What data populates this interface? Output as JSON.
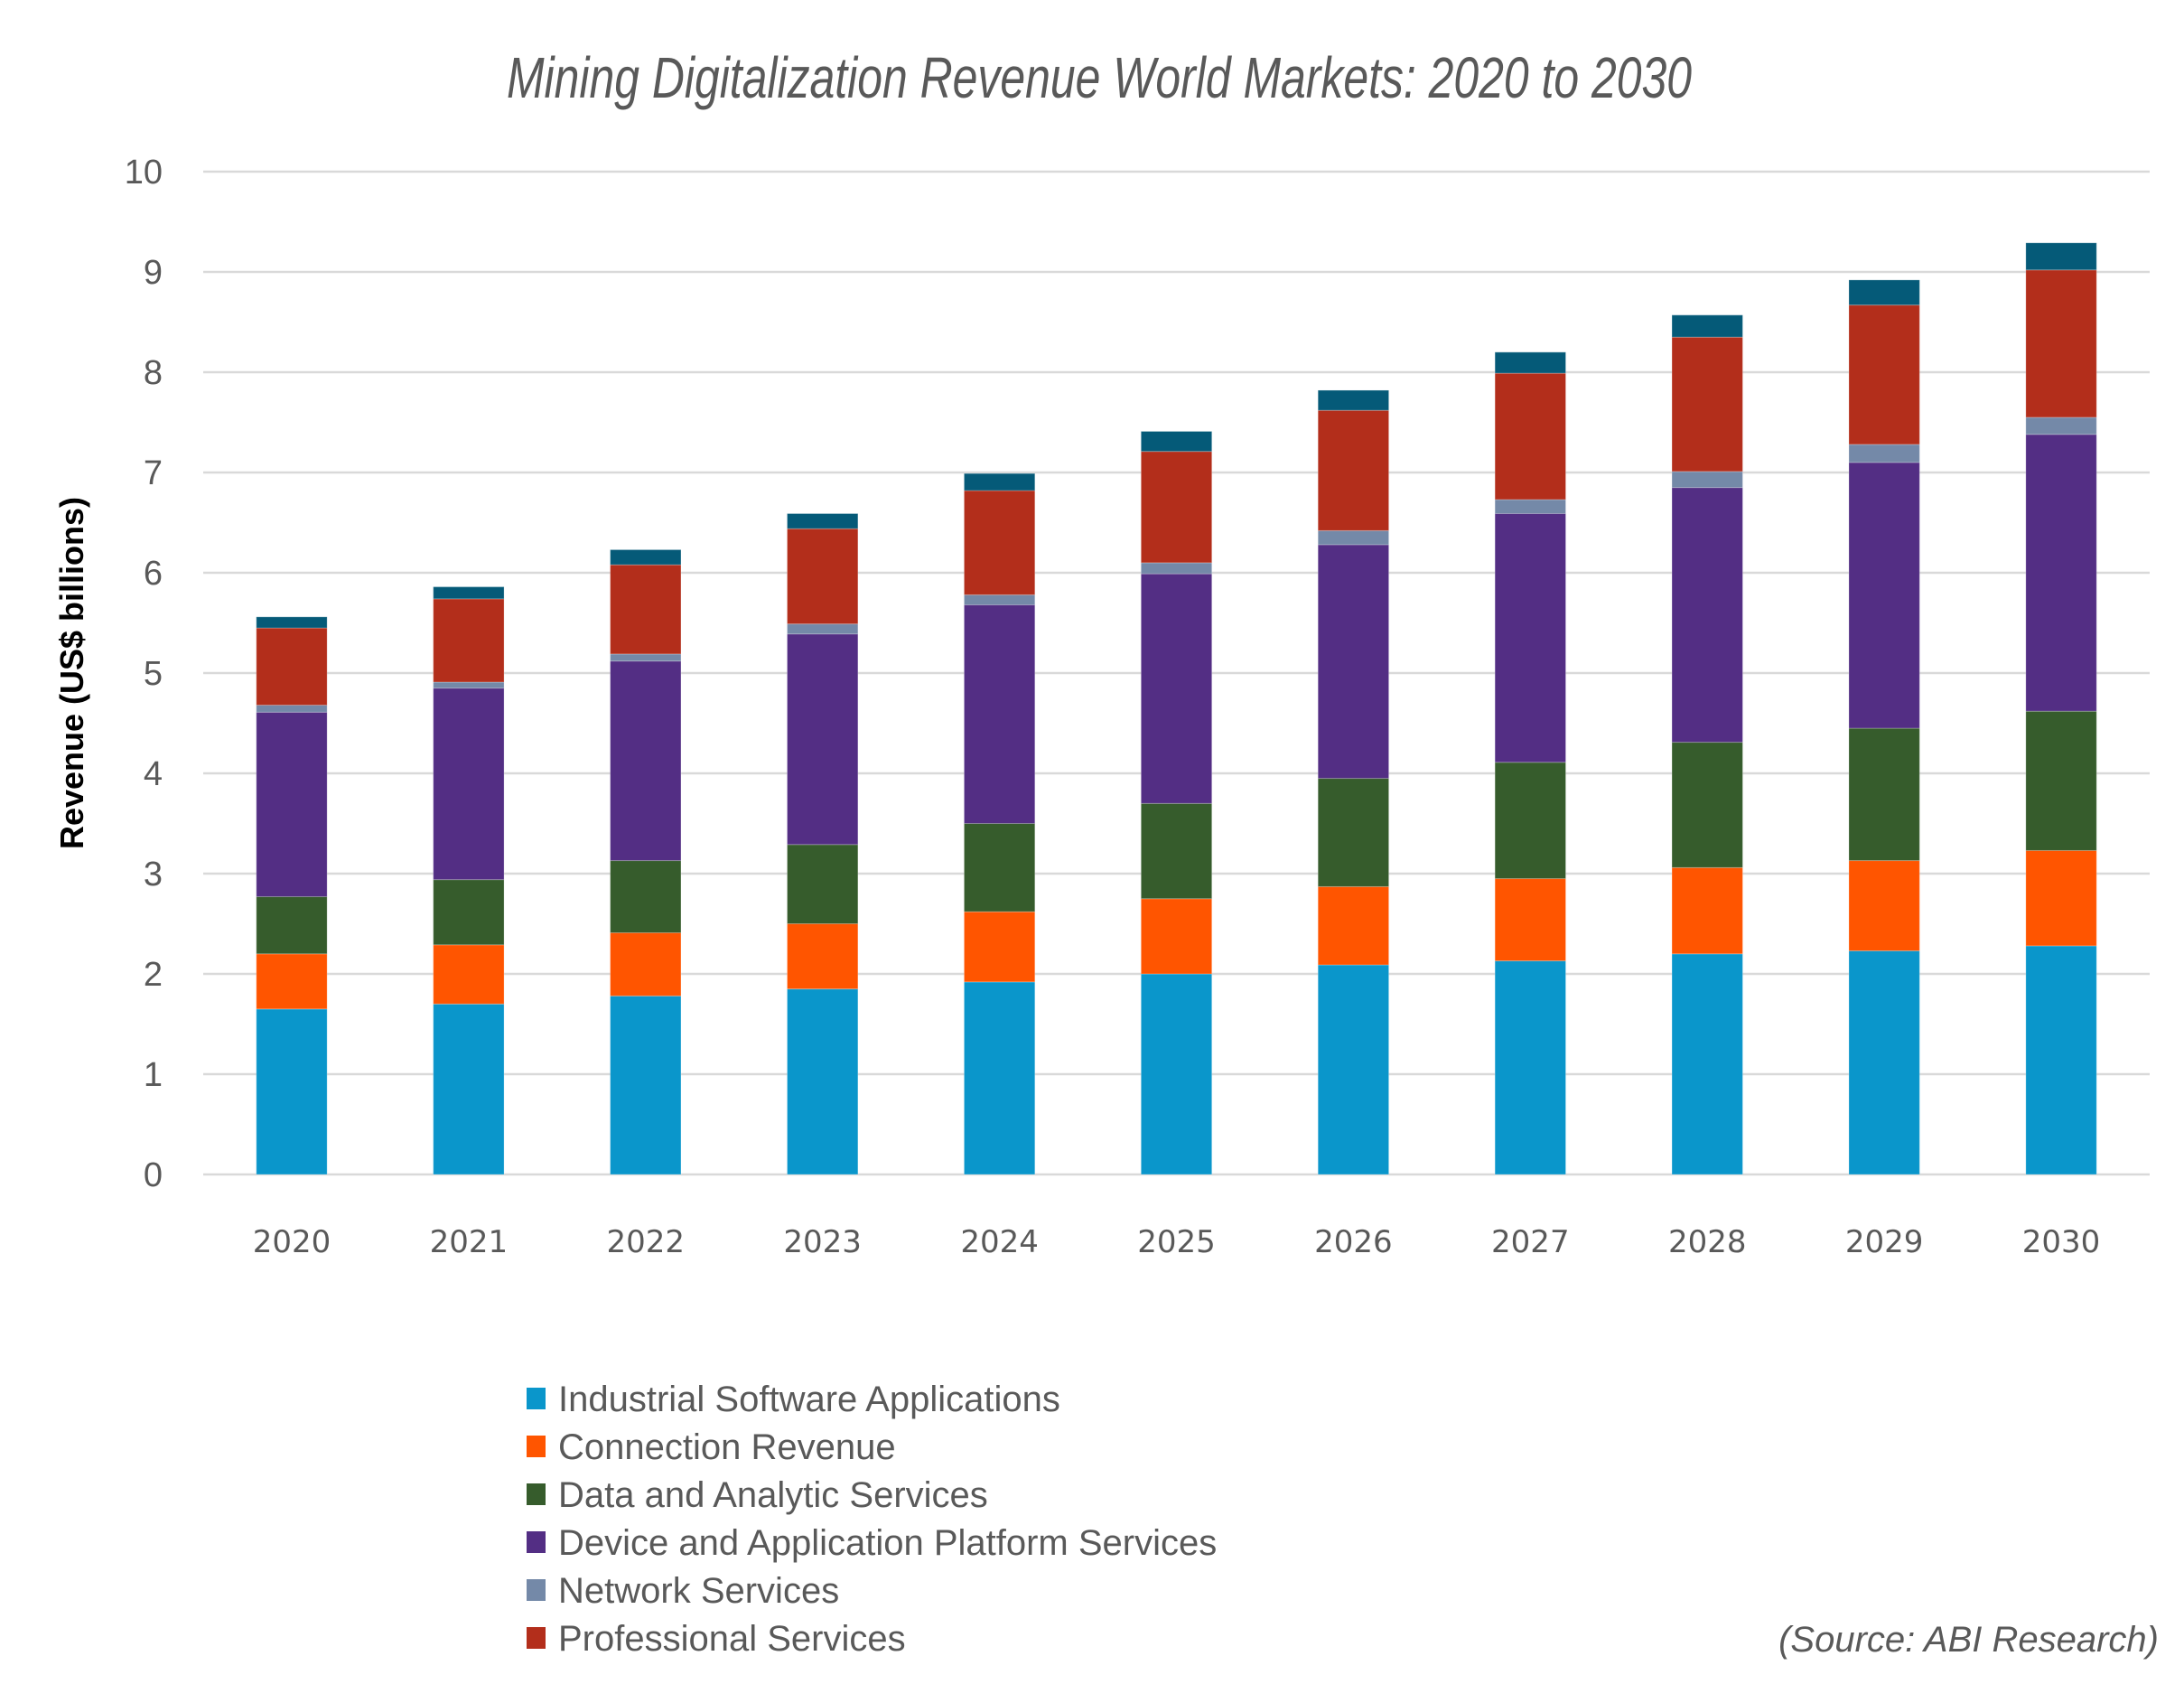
{
  "chart_data": {
    "type": "bar",
    "stacked": true,
    "title": "Mining Digitalization Revenue World Markets: 2020 to 2030",
    "xlabel": "",
    "ylabel": "Revenue (US$ billions)",
    "ylim": [
      0,
      10
    ],
    "yticks": [
      "0",
      "1",
      "2",
      "3",
      "4",
      "5",
      "6",
      "7",
      "8",
      "9",
      "10"
    ],
    "grid": true,
    "legend_position": "bottom",
    "source": "(Source: ABI Research)",
    "categories": [
      "2020",
      "2021",
      "2022",
      "2023",
      "2024",
      "2025",
      "2026",
      "2027",
      "2028",
      "2029",
      "2030"
    ],
    "series": [
      {
        "name": "Industrial Software Applications",
        "color": "#0a96cb",
        "in_legend": true,
        "values": [
          1.65,
          1.7,
          1.78,
          1.85,
          1.92,
          2.0,
          2.09,
          2.13,
          2.2,
          2.23,
          2.28
        ]
      },
      {
        "name": "Connection Revenue",
        "color": "#ff5500",
        "in_legend": true,
        "values": [
          0.55,
          0.59,
          0.63,
          0.65,
          0.7,
          0.75,
          0.78,
          0.82,
          0.86,
          0.9,
          0.95
        ]
      },
      {
        "name": "Data and Analytic Services",
        "color": "#365c2c",
        "in_legend": true,
        "values": [
          0.57,
          0.65,
          0.72,
          0.79,
          0.88,
          0.95,
          1.08,
          1.16,
          1.25,
          1.32,
          1.39
        ]
      },
      {
        "name": "Device and Application Platform Services",
        "color": "#532e84",
        "in_legend": true,
        "values": [
          1.84,
          1.91,
          1.99,
          2.1,
          2.18,
          2.29,
          2.33,
          2.48,
          2.54,
          2.65,
          2.76
        ]
      },
      {
        "name": "Network Services",
        "color": "#7489a8",
        "in_legend": true,
        "values": [
          0.07,
          0.06,
          0.07,
          0.1,
          0.1,
          0.11,
          0.14,
          0.14,
          0.16,
          0.18,
          0.17
        ]
      },
      {
        "name": "Professional Services",
        "color": "#b32e1b",
        "in_legend": true,
        "values": [
          0.77,
          0.83,
          0.89,
          0.95,
          1.04,
          1.11,
          1.2,
          1.26,
          1.34,
          1.39,
          1.47
        ]
      },
      {
        "name": "",
        "color": "#055a78",
        "in_legend": false,
        "values": [
          0.11,
          0.12,
          0.15,
          0.15,
          0.17,
          0.2,
          0.2,
          0.21,
          0.22,
          0.25,
          0.27
        ]
      }
    ]
  }
}
